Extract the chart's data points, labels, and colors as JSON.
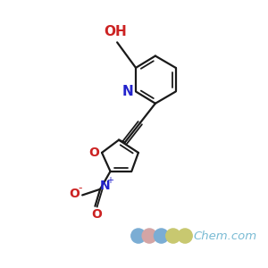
{
  "background_color": "#ffffff",
  "bond_color": "#1a1a1a",
  "N_color": "#2222cc",
  "O_color": "#cc2222",
  "OH_label": "OH",
  "N_label": "N",
  "O_furan_label": "O",
  "NO2_N_label": "N",
  "NO2_O1_label": "O",
  "NO2_O2_label": "O",
  "NO2_plus": "+",
  "NO2_minus": "-",
  "watermark_text": "Chem.com",
  "circle_colors": [
    "#7badd4",
    "#d4a5a5",
    "#7badd4",
    "#c8c870",
    "#c8c870"
  ],
  "watermark_color": "#7abbd4"
}
